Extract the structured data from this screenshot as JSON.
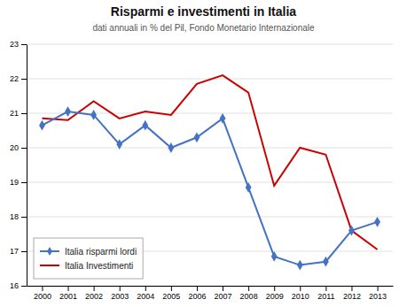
{
  "chart_data": {
    "type": "line",
    "title": "Risparmi e investimenti in Italia",
    "subtitle": "dati annuali in % del Pil, Fondo Monetario Internazionale",
    "x": [
      2000,
      2001,
      2002,
      2003,
      2004,
      2005,
      2006,
      2007,
      2008,
      2009,
      2010,
      2011,
      2012,
      2013
    ],
    "series": [
      {
        "name": "Italia risparmi lordi",
        "color": "#4472C4",
        "marker": "diamond",
        "values": [
          20.65,
          21.05,
          20.95,
          20.1,
          20.65,
          20.0,
          20.3,
          20.85,
          18.85,
          16.85,
          16.6,
          16.7,
          17.6,
          17.85
        ]
      },
      {
        "name": "Italia Investimenti",
        "color": "#CC0000",
        "values": [
          20.85,
          20.8,
          21.35,
          20.85,
          21.05,
          20.95,
          21.85,
          22.1,
          21.6,
          18.9,
          20.0,
          19.8,
          17.6,
          17.05
        ]
      }
    ],
    "xlim": [
      1999.4,
      2013.6
    ],
    "xticks": [
      2000,
      2001,
      2002,
      2003,
      2004,
      2005,
      2006,
      2007,
      2008,
      2009,
      2010,
      2011,
      2012,
      2013
    ],
    "ylim": [
      16,
      23
    ],
    "yticks": [
      16,
      17,
      18,
      19,
      20,
      21,
      22,
      23
    ],
    "grid": true,
    "legend": "lower left"
  }
}
